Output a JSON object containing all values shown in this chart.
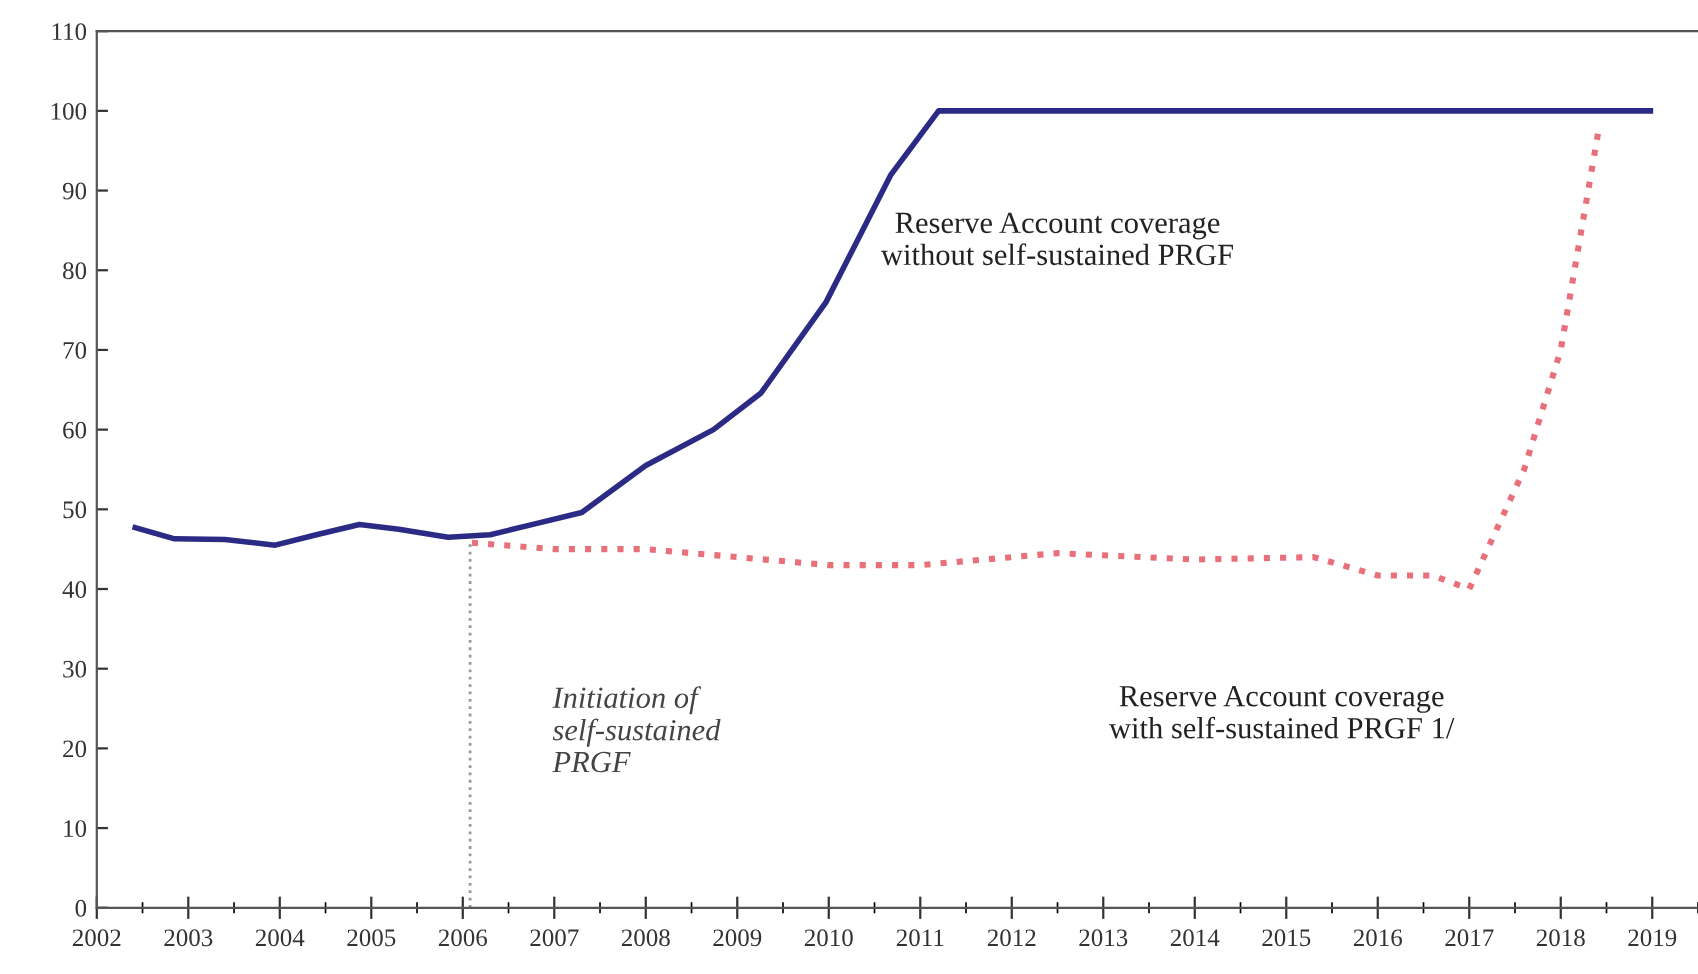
{
  "chart_data": {
    "type": "line",
    "series": [
      {
        "color": "#2b2b86",
        "line_style": "solid",
        "x": [
          2002.42,
          2002.85,
          2003.4,
          2003.95,
          2004.4,
          2004.87,
          2005.3,
          2005.84,
          2006.3,
          2006.8,
          2007.3,
          2008.0,
          2008.74,
          2009.26,
          2009.97,
          2010.68,
          2011.2,
          2018.98
        ],
        "values": [
          47.7,
          46.3,
          46.2,
          45.5,
          46.8,
          48.1,
          47.5,
          46.5,
          46.8,
          48.2,
          49.6,
          55.5,
          60,
          64.6,
          76,
          92,
          100,
          100
        ]
      },
      {
        "color": "#e8707a",
        "line_style": "dotted",
        "x": [
          2006.1,
          2007.0,
          2008.0,
          2009.0,
          2010.0,
          2011.0,
          2012.5,
          2014.0,
          2015.3,
          2016.0,
          2016.6,
          2017.0,
          2017.6,
          2018.0,
          2018.42
        ],
        "values": [
          45.8,
          45,
          45,
          44,
          43,
          43,
          44.5,
          43.7,
          44,
          41.7,
          41.7,
          40,
          55,
          70,
          98
        ]
      }
    ],
    "xlim": [
      2002,
      2019.5
    ],
    "xticks": [
      2002,
      2003,
      2004,
      2005,
      2006,
      2007,
      2008,
      2009,
      2010,
      2011,
      2012,
      2013,
      2014,
      2015,
      2016,
      2017,
      2018,
      2019
    ],
    "ylim": [
      0,
      110
    ],
    "yticks": [
      0,
      10,
      20,
      30,
      40,
      50,
      60,
      70,
      80,
      90,
      100,
      110
    ],
    "ref_lines": [
      {
        "axis": "x",
        "value": 2006.08,
        "label": "Initiation of\nself-sustained\nPRGF",
        "color": "#999999",
        "line_style": "dotted"
      }
    ],
    "annotations": [
      "Reserve Account coverage\nwithout self-sustained PRGF",
      "Reserve Account coverage\nwith self-sustained PRGF 1/"
    ],
    "grid": false,
    "legend": false,
    "marker": "none"
  }
}
